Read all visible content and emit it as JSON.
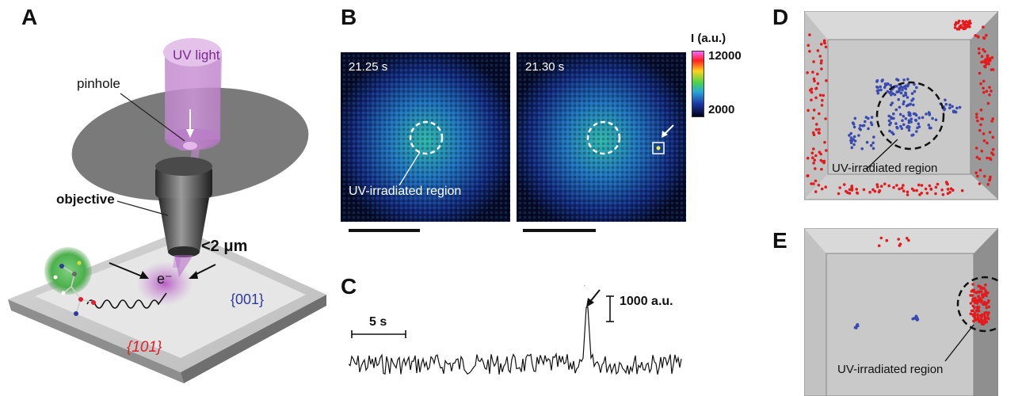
{
  "panels": {
    "A": {
      "letter": "A",
      "uv_light": "UV light",
      "pinhole": "pinhole",
      "objective": "objective",
      "size_label": "<2 μm",
      "electron": "e⁻",
      "facet_101": "{101}",
      "facet_001": "{001}",
      "colors": {
        "uv": "#9b3fa8",
        "facet_101": "#e0202a",
        "facet_001": "#2b3c9a"
      }
    },
    "B": {
      "letter": "B",
      "time_left": "21.25 s",
      "time_right": "21.30 s",
      "region_label": "UV-irradiated region",
      "colorbar": {
        "title": "I (a.u.)",
        "max": "12000",
        "min": "2000"
      }
    },
    "C": {
      "letter": "C",
      "time_scale": "5 s",
      "intensity_scale": "1000 a.u."
    },
    "D": {
      "letter": "D",
      "region_label": "UV-irradiated region"
    },
    "E": {
      "letter": "E",
      "region_label": "UV-irradiated region"
    },
    "colors": {
      "blue_dots": "#3a4bb0",
      "red_dots": "#e41a1c"
    }
  }
}
